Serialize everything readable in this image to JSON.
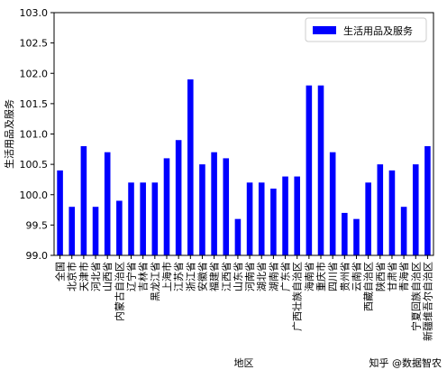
{
  "chart_data": {
    "type": "bar",
    "xlabel": "地区",
    "ylabel": "生活用品及服务",
    "categories": [
      "全国",
      "北京市",
      "天津市",
      "河北省",
      "山西省",
      "内蒙古自治区",
      "辽宁省",
      "吉林省",
      "黑龙江省",
      "上海市",
      "江苏省",
      "浙江省",
      "安徽省",
      "福建省",
      "江西省",
      "山东省",
      "河南省",
      "湖北省",
      "湖南省",
      "广东省",
      "广西壮族自治区",
      "海南省",
      "重庆市",
      "四川省",
      "贵州省",
      "云南省",
      "西藏自治区",
      "陕西省",
      "甘肃省",
      "青海省",
      "宁夏回族自治区",
      "新疆维吾尔自治区"
    ],
    "series": [
      {
        "name": "生活用品及服务",
        "color": "#0000ff",
        "values": [
          100.4,
          99.8,
          100.8,
          99.8,
          100.7,
          99.9,
          100.2,
          100.2,
          100.2,
          100.6,
          100.9,
          101.9,
          100.5,
          100.7,
          100.6,
          99.6,
          100.2,
          100.2,
          100.1,
          100.3,
          100.3,
          101.8,
          101.8,
          100.7,
          99.7,
          99.6,
          100.2,
          100.5,
          100.4,
          99.8,
          100.5,
          100.8
        ]
      }
    ],
    "ylim": [
      99.0,
      103.0
    ],
    "yticks": [
      {
        "value": 99,
        "label": "99.0"
      },
      99.5,
      {
        "value": 100,
        "label": "100.0"
      },
      100.5,
      {
        "value": 101,
        "label": "101.0"
      },
      101.5,
      {
        "value": 102,
        "label": "102.0"
      },
      102.5,
      {
        "value": 103,
        "label": "103.0"
      }
    ],
    "legend": "upper right",
    "watermark": "知乎 @数据智农"
  }
}
